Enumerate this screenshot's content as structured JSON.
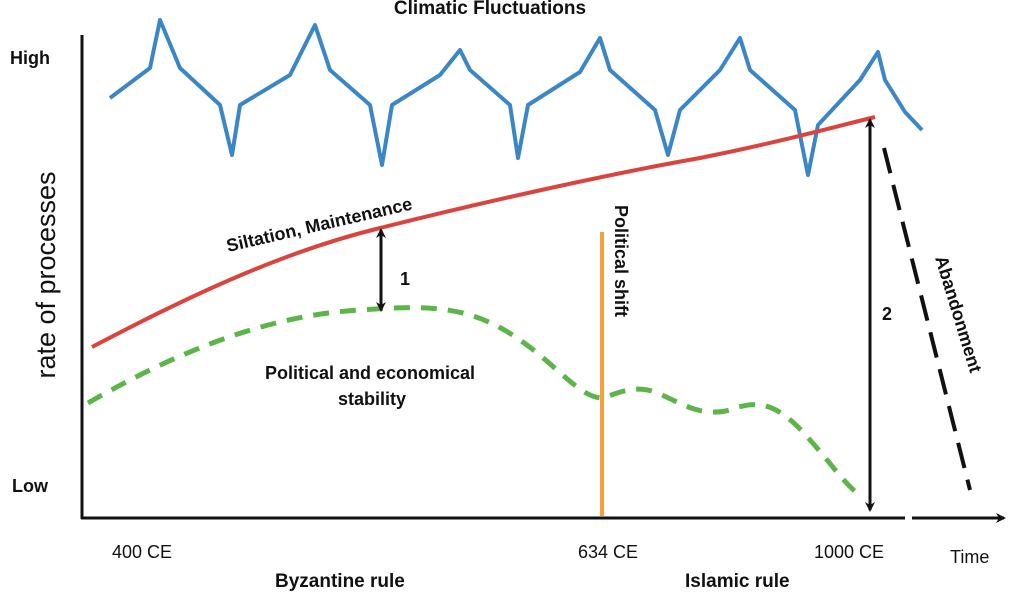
{
  "title": "Climatic Fluctuations",
  "y_axis": {
    "label": "rate of processes",
    "high": "High",
    "low": "Low"
  },
  "x_axis": {
    "label": "Time",
    "ticks": [
      "400 CE",
      "634 CE",
      "1000 CE"
    ]
  },
  "periods": [
    "Byzantine rule",
    "Islamic rule"
  ],
  "curves": {
    "climate": {
      "color": "#3b86c6"
    },
    "siltation": {
      "label": "Siltation, Maintenance",
      "color": "#d9443f"
    },
    "stability": {
      "label_line1": "Political and economical",
      "label_line2": "stability",
      "color": "#5db54a"
    }
  },
  "annotations": {
    "political_shift": {
      "label": "Political shift",
      "color": "#f5a03a"
    },
    "gap1": "1",
    "gap2": "2",
    "abandonment": "Abandonment"
  }
}
